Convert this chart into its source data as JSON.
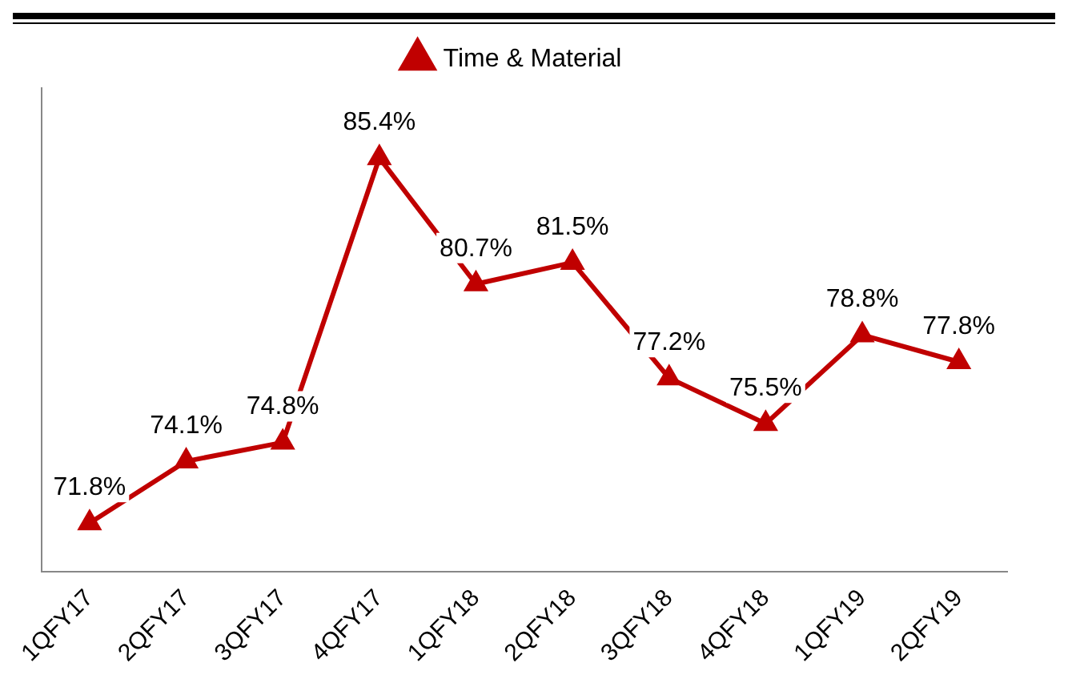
{
  "chart_data": {
    "type": "line",
    "categories": [
      "1QFY17",
      "2QFY17",
      "3QFY17",
      "4QFY17",
      "1QFY18",
      "2QFY18",
      "3QFY18",
      "4QFY18",
      "1QFY19",
      "2QFY19"
    ],
    "series": [
      {
        "name": "Time & Material",
        "color": "#c00000",
        "values": [
          71.8,
          74.1,
          74.8,
          85.4,
          80.7,
          81.5,
          77.2,
          75.5,
          78.8,
          77.8
        ],
        "value_labels": [
          "71.8%",
          "74.1%",
          "74.8%",
          "85.4%",
          "80.7%",
          "81.5%",
          "77.2%",
          "75.5%",
          "78.8%",
          "77.8%"
        ]
      }
    ],
    "legend": "top",
    "marker": "triangle",
    "line_style": "solid",
    "grid": false,
    "tick_labels": "x"
  }
}
